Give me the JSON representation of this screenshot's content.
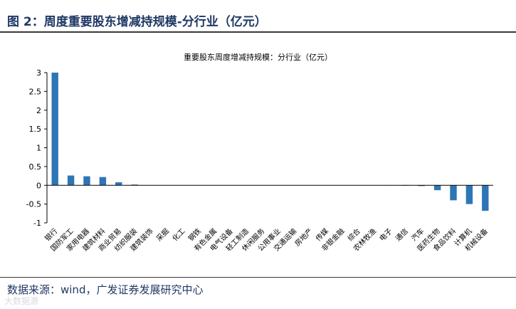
{
  "figure_title": "图 2：周度重要股东增减持规模-分行业（亿元）",
  "source_text": "数据来源：wind，广发证券发展研究中心",
  "watermark": "大数据源",
  "colors": {
    "bar": "#2e75b6",
    "axis": "#000000",
    "title": "#1f3864"
  },
  "chart_data": {
    "type": "bar",
    "title": "重要股东周度增减持规模：分行业（亿元）",
    "xlabel": "",
    "ylabel": "",
    "ylim": [
      -1,
      3
    ],
    "yticks": [
      3,
      2.5,
      2,
      1.5,
      1,
      0.5,
      0,
      -0.5,
      -1
    ],
    "ytick_labels": [
      "3",
      "2.5",
      "2",
      "1.5",
      "1",
      "0.5",
      "0",
      "-0.5",
      "-1"
    ],
    "grid": false,
    "legend": "none",
    "categories": [
      "银行",
      "国防军工",
      "家用电器",
      "建筑材料",
      "商业贸易",
      "纺织服装",
      "建筑装饰",
      "采掘",
      "化工",
      "钢铁",
      "有色金属",
      "电气设备",
      "轻工制造",
      "休闲服务",
      "公用事业",
      "交通运输",
      "房地产",
      "传媒",
      "非银金融",
      "综合",
      "农林牧渔",
      "电子",
      "通信",
      "汽车",
      "医药生物",
      "食品饮料",
      "计算机",
      "机械设备"
    ],
    "values": [
      3.0,
      0.26,
      0.24,
      0.22,
      0.08,
      0.02,
      0.005,
      0.002,
      0.001,
      0.001,
      0.0,
      0.0,
      0.0,
      0.0,
      0.0,
      0.0,
      0.0,
      0.0,
      0.0,
      0.0,
      0.0,
      -0.005,
      -0.01,
      -0.02,
      -0.13,
      -0.4,
      -0.5,
      -0.68
    ]
  }
}
